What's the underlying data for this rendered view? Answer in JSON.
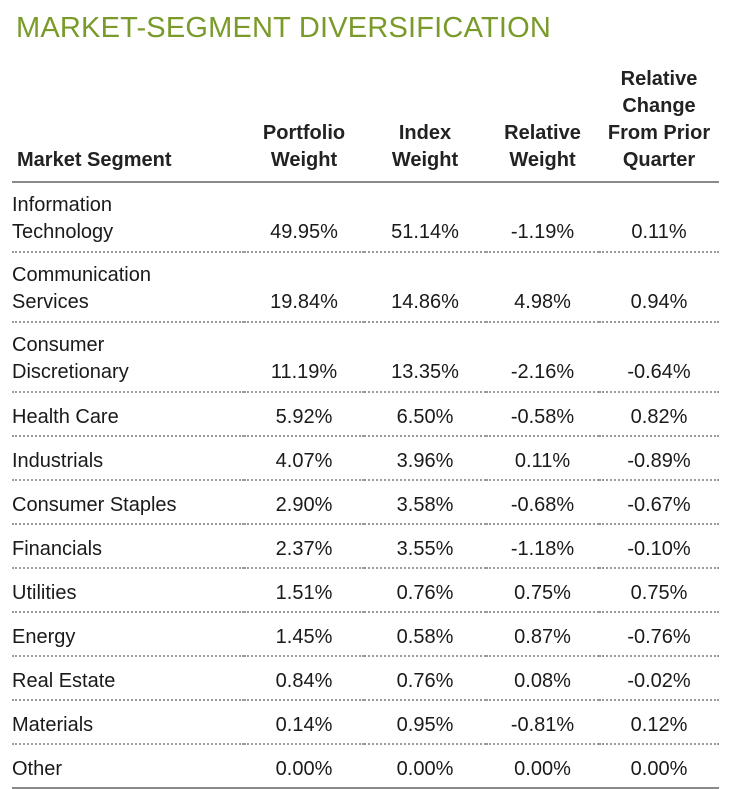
{
  "title": "MARKET-SEGMENT DIVERSIFICATION",
  "columns": [
    [
      "Market Segment"
    ],
    [
      "Portfolio",
      "Weight"
    ],
    [
      "Index",
      "Weight"
    ],
    [
      "Relative",
      "Weight"
    ],
    [
      "Relative",
      "Change",
      "From Prior",
      "Quarter"
    ]
  ],
  "rows": [
    {
      "segment": [
        "Information",
        "Technology"
      ],
      "portfolio_weight": "49.95%",
      "index_weight": "51.14%",
      "relative_weight": "-1.19%",
      "relative_change": "0.11%"
    },
    {
      "segment": [
        "Communication",
        "Services"
      ],
      "portfolio_weight": "19.84%",
      "index_weight": "14.86%",
      "relative_weight": "4.98%",
      "relative_change": "0.94%"
    },
    {
      "segment": [
        "Consumer",
        "Discretionary"
      ],
      "portfolio_weight": "11.19%",
      "index_weight": "13.35%",
      "relative_weight": "-2.16%",
      "relative_change": "-0.64%"
    },
    {
      "segment": [
        "Health Care"
      ],
      "portfolio_weight": "5.92%",
      "index_weight": "6.50%",
      "relative_weight": "-0.58%",
      "relative_change": "0.82%"
    },
    {
      "segment": [
        "Industrials"
      ],
      "portfolio_weight": "4.07%",
      "index_weight": "3.96%",
      "relative_weight": "0.11%",
      "relative_change": "-0.89%"
    },
    {
      "segment": [
        "Consumer Staples"
      ],
      "portfolio_weight": "2.90%",
      "index_weight": "3.58%",
      "relative_weight": "-0.68%",
      "relative_change": "-0.67%"
    },
    {
      "segment": [
        "Financials"
      ],
      "portfolio_weight": "2.37%",
      "index_weight": "3.55%",
      "relative_weight": "-1.18%",
      "relative_change": "-0.10%"
    },
    {
      "segment": [
        "Utilities"
      ],
      "portfolio_weight": "1.51%",
      "index_weight": "0.76%",
      "relative_weight": "0.75%",
      "relative_change": "0.75%"
    },
    {
      "segment": [
        "Energy"
      ],
      "portfolio_weight": "1.45%",
      "index_weight": "0.58%",
      "relative_weight": "0.87%",
      "relative_change": "-0.76%"
    },
    {
      "segment": [
        "Real Estate"
      ],
      "portfolio_weight": "0.84%",
      "index_weight": "0.76%",
      "relative_weight": "0.08%",
      "relative_change": "-0.02%"
    },
    {
      "segment": [
        "Materials"
      ],
      "portfolio_weight": "0.14%",
      "index_weight": "0.95%",
      "relative_weight": "-0.81%",
      "relative_change": "0.12%"
    },
    {
      "segment": [
        "Other"
      ],
      "portfolio_weight": "0.00%",
      "index_weight": "0.00%",
      "relative_weight": "0.00%",
      "relative_change": "0.00%"
    }
  ],
  "colors": {
    "title": "#7a9a2a",
    "rule": "#8a8a8a",
    "dots": "#9a9a9a"
  }
}
